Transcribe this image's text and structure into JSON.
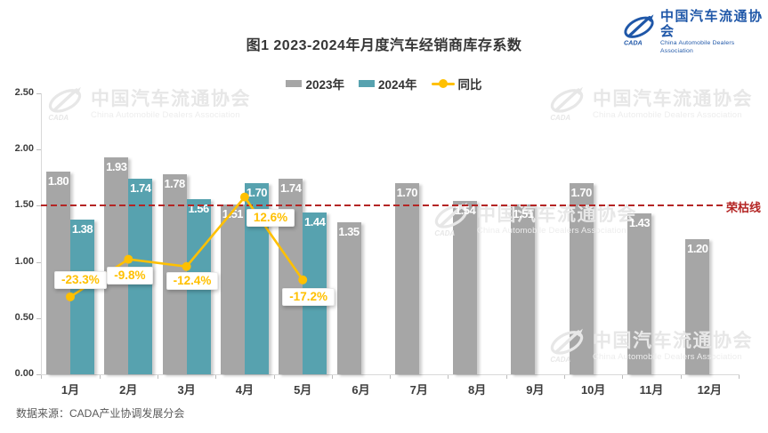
{
  "title": "图1  2023-2024年月度汽车经销商库存系数",
  "logo": {
    "mark": "CADA",
    "name_cn": "中国汽车流通协会",
    "name_en": "China Automobile Dealers Association",
    "color": "#1f57a8"
  },
  "watermark": {
    "mark": "CADA",
    "name_cn": "中国汽车流通协会",
    "name_en": "China Automobile Dealers Association"
  },
  "legend": {
    "items": [
      {
        "label": "2023年",
        "color": "#a6a6a6",
        "marker": "swatch"
      },
      {
        "label": "2024年",
        "color": "#57a2af",
        "marker": "swatch"
      },
      {
        "label": "同比",
        "color": "#ffc000",
        "marker": "line-dot"
      }
    ]
  },
  "footer": {
    "source": "数据来源：CADA产业协调发展分会"
  },
  "chart_data": {
    "type": "bar",
    "title": "图1 2023-2024年月度汽车经销商库存系数",
    "categories": [
      "1月",
      "2月",
      "3月",
      "4月",
      "5月",
      "6月",
      "7月",
      "8月",
      "9月",
      "10月",
      "11月",
      "12月"
    ],
    "series": [
      {
        "name": "2023年",
        "type": "bar",
        "color": "#a6a6a6",
        "values": [
          1.8,
          1.93,
          1.78,
          1.51,
          1.74,
          1.35,
          1.7,
          1.54,
          1.51,
          1.7,
          1.43,
          1.2
        ]
      },
      {
        "name": "2024年",
        "type": "bar",
        "color": "#57a2af",
        "values": [
          1.38,
          1.74,
          1.56,
          1.7,
          1.44,
          null,
          null,
          null,
          null,
          null,
          null,
          null
        ]
      },
      {
        "name": "同比",
        "type": "line",
        "color": "#ffc000",
        "axis": "secondary",
        "values_percent": [
          -23.3,
          -9.8,
          -12.4,
          12.6,
          -17.2,
          null,
          null,
          null,
          null,
          null,
          null,
          null
        ],
        "labels": [
          "-23.3%",
          "-9.8%",
          "-12.4%",
          "12.6%",
          "-17.2%"
        ]
      }
    ],
    "ylim": [
      0,
      2.5
    ],
    "yticks": [
      "0.00",
      "0.50",
      "1.00",
      "1.50",
      "2.00",
      "2.50"
    ],
    "threshold": {
      "value": 1.5,
      "label": "荣枯线",
      "color": "#b42524",
      "style": "dashed"
    },
    "legend_position": "top",
    "grid": false,
    "source": "数据来源：CADA产业协调发展分会"
  }
}
